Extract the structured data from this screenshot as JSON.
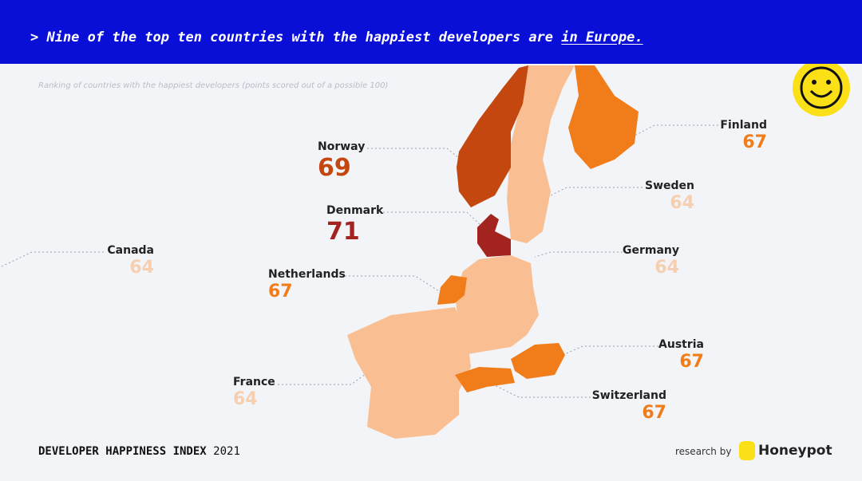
{
  "header": {
    "prefix": "> Nine of the top ten countries with the happiest developers are",
    "link": "in Europe."
  },
  "subtitle": "Ranking of countries with the happiest developers (points scored out of a possible 100)",
  "countries": [
    {
      "name": "Norway",
      "score": 69,
      "color": "#c4470f"
    },
    {
      "name": "Denmark",
      "score": 71,
      "color": "#a3231f"
    },
    {
      "name": "Finland",
      "score": 67,
      "color": "#f07d19"
    },
    {
      "name": "Sweden",
      "score": 64,
      "color": "#f9bf93"
    },
    {
      "name": "Germany",
      "score": 64,
      "color": "#f9bf93"
    },
    {
      "name": "Canada",
      "score": 64,
      "color": "#f9bf93"
    },
    {
      "name": "Netherlands",
      "score": 67,
      "color": "#f07d19"
    },
    {
      "name": "Austria",
      "score": 67,
      "color": "#f07d19"
    },
    {
      "name": "France",
      "score": 64,
      "color": "#f9bf93"
    },
    {
      "name": "Switzerland",
      "score": 67,
      "color": "#f07d19"
    }
  ],
  "footer": {
    "index": "DEVELOPER HAPPINESS INDEX",
    "year": "2021",
    "research": "research by",
    "brand": "Honeypot"
  }
}
